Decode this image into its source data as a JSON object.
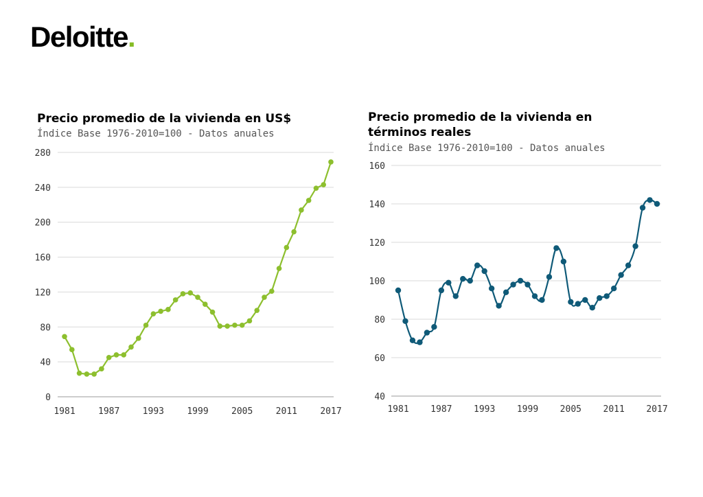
{
  "brand": {
    "name": "Deloitte",
    "dot": ".",
    "accent": "#86bc25"
  },
  "chart_data": [
    {
      "type": "line",
      "title": "Precio promedio de la vivienda en US$",
      "subtitle": "Índice Base 1976-2010=100 - Datos anuales",
      "color": "#8dbf2e",
      "ylim": [
        0,
        280
      ],
      "yticks": [
        0,
        40,
        80,
        120,
        160,
        200,
        240,
        280
      ],
      "xlim": [
        1981,
        2017
      ],
      "xticks": [
        1981,
        1987,
        1993,
        1999,
        2005,
        2011,
        2017
      ],
      "grid": true,
      "x": [
        1981,
        1982,
        1983,
        1984,
        1985,
        1986,
        1987,
        1988,
        1989,
        1990,
        1991,
        1992,
        1993,
        1994,
        1995,
        1996,
        1997,
        1998,
        1999,
        2000,
        2001,
        2002,
        2003,
        2004,
        2005,
        2006,
        2007,
        2008,
        2009,
        2010,
        2011,
        2012,
        2013,
        2014,
        2015,
        2016,
        2017
      ],
      "values": [
        69,
        54,
        27,
        26,
        26,
        32,
        45,
        48,
        48,
        57,
        67,
        82,
        95,
        98,
        100,
        111,
        118,
        119,
        114,
        106,
        97,
        81,
        81,
        82,
        82,
        87,
        99,
        114,
        121,
        147,
        171,
        189,
        214,
        225,
        239,
        243,
        269
      ]
    },
    {
      "type": "line",
      "title": "Precio promedio de la vivienda en términos reales",
      "title_lines": [
        "Precio promedio de la vivienda en",
        "términos reales"
      ],
      "subtitle": "Índice Base 1976-2010=100  - Datos anuales",
      "color": "#0f5a78",
      "ylim": [
        40,
        160
      ],
      "yticks": [
        40,
        60,
        80,
        100,
        120,
        140,
        160
      ],
      "xlim": [
        1981,
        2017
      ],
      "xticks": [
        1981,
        1987,
        1993,
        1999,
        2005,
        2011,
        2017
      ],
      "grid": true,
      "x": [
        1981,
        1982,
        1983,
        1984,
        1985,
        1986,
        1987,
        1988,
        1989,
        1990,
        1991,
        1992,
        1993,
        1994,
        1995,
        1996,
        1997,
        1998,
        1999,
        2000,
        2001,
        2002,
        2003,
        2004,
        2005,
        2006,
        2007,
        2008,
        2009,
        2010,
        2011,
        2012,
        2013,
        2014,
        2015,
        2016,
        2017
      ],
      "values": [
        95,
        79,
        69,
        68,
        73,
        76,
        95,
        99,
        92,
        101,
        100,
        108,
        105,
        96,
        87,
        94,
        98,
        100,
        98,
        92,
        90,
        102,
        117,
        110,
        89,
        88,
        90,
        86,
        91,
        92,
        96,
        103,
        108,
        118,
        138,
        142,
        140
      ]
    }
  ]
}
